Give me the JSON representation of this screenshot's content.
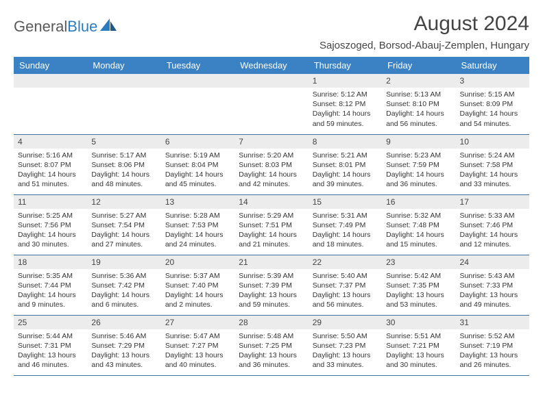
{
  "logo": {
    "word1": "General",
    "word2": "Blue"
  },
  "title": "August 2024",
  "location": "Sajoszoged, Borsod-Abauj-Zemplen, Hungary",
  "colors": {
    "header_bg": "#3b82c4",
    "header_text": "#ffffff",
    "daynum_bg": "#ececec",
    "row_border": "#3b6fa0",
    "logo_gray": "#5a5a5a",
    "logo_blue": "#2b7bbf"
  },
  "dayHeaders": [
    "Sunday",
    "Monday",
    "Tuesday",
    "Wednesday",
    "Thursday",
    "Friday",
    "Saturday"
  ],
  "weeks": [
    [
      {
        "n": "",
        "sr": "",
        "ss": "",
        "dl": ""
      },
      {
        "n": "",
        "sr": "",
        "ss": "",
        "dl": ""
      },
      {
        "n": "",
        "sr": "",
        "ss": "",
        "dl": ""
      },
      {
        "n": "",
        "sr": "",
        "ss": "",
        "dl": ""
      },
      {
        "n": "1",
        "sr": "Sunrise: 5:12 AM",
        "ss": "Sunset: 8:12 PM",
        "dl": "Daylight: 14 hours and 59 minutes."
      },
      {
        "n": "2",
        "sr": "Sunrise: 5:13 AM",
        "ss": "Sunset: 8:10 PM",
        "dl": "Daylight: 14 hours and 56 minutes."
      },
      {
        "n": "3",
        "sr": "Sunrise: 5:15 AM",
        "ss": "Sunset: 8:09 PM",
        "dl": "Daylight: 14 hours and 54 minutes."
      }
    ],
    [
      {
        "n": "4",
        "sr": "Sunrise: 5:16 AM",
        "ss": "Sunset: 8:07 PM",
        "dl": "Daylight: 14 hours and 51 minutes."
      },
      {
        "n": "5",
        "sr": "Sunrise: 5:17 AM",
        "ss": "Sunset: 8:06 PM",
        "dl": "Daylight: 14 hours and 48 minutes."
      },
      {
        "n": "6",
        "sr": "Sunrise: 5:19 AM",
        "ss": "Sunset: 8:04 PM",
        "dl": "Daylight: 14 hours and 45 minutes."
      },
      {
        "n": "7",
        "sr": "Sunrise: 5:20 AM",
        "ss": "Sunset: 8:03 PM",
        "dl": "Daylight: 14 hours and 42 minutes."
      },
      {
        "n": "8",
        "sr": "Sunrise: 5:21 AM",
        "ss": "Sunset: 8:01 PM",
        "dl": "Daylight: 14 hours and 39 minutes."
      },
      {
        "n": "9",
        "sr": "Sunrise: 5:23 AM",
        "ss": "Sunset: 7:59 PM",
        "dl": "Daylight: 14 hours and 36 minutes."
      },
      {
        "n": "10",
        "sr": "Sunrise: 5:24 AM",
        "ss": "Sunset: 7:58 PM",
        "dl": "Daylight: 14 hours and 33 minutes."
      }
    ],
    [
      {
        "n": "11",
        "sr": "Sunrise: 5:25 AM",
        "ss": "Sunset: 7:56 PM",
        "dl": "Daylight: 14 hours and 30 minutes."
      },
      {
        "n": "12",
        "sr": "Sunrise: 5:27 AM",
        "ss": "Sunset: 7:54 PM",
        "dl": "Daylight: 14 hours and 27 minutes."
      },
      {
        "n": "13",
        "sr": "Sunrise: 5:28 AM",
        "ss": "Sunset: 7:53 PM",
        "dl": "Daylight: 14 hours and 24 minutes."
      },
      {
        "n": "14",
        "sr": "Sunrise: 5:29 AM",
        "ss": "Sunset: 7:51 PM",
        "dl": "Daylight: 14 hours and 21 minutes."
      },
      {
        "n": "15",
        "sr": "Sunrise: 5:31 AM",
        "ss": "Sunset: 7:49 PM",
        "dl": "Daylight: 14 hours and 18 minutes."
      },
      {
        "n": "16",
        "sr": "Sunrise: 5:32 AM",
        "ss": "Sunset: 7:48 PM",
        "dl": "Daylight: 14 hours and 15 minutes."
      },
      {
        "n": "17",
        "sr": "Sunrise: 5:33 AM",
        "ss": "Sunset: 7:46 PM",
        "dl": "Daylight: 14 hours and 12 minutes."
      }
    ],
    [
      {
        "n": "18",
        "sr": "Sunrise: 5:35 AM",
        "ss": "Sunset: 7:44 PM",
        "dl": "Daylight: 14 hours and 9 minutes."
      },
      {
        "n": "19",
        "sr": "Sunrise: 5:36 AM",
        "ss": "Sunset: 7:42 PM",
        "dl": "Daylight: 14 hours and 6 minutes."
      },
      {
        "n": "20",
        "sr": "Sunrise: 5:37 AM",
        "ss": "Sunset: 7:40 PM",
        "dl": "Daylight: 14 hours and 2 minutes."
      },
      {
        "n": "21",
        "sr": "Sunrise: 5:39 AM",
        "ss": "Sunset: 7:39 PM",
        "dl": "Daylight: 13 hours and 59 minutes."
      },
      {
        "n": "22",
        "sr": "Sunrise: 5:40 AM",
        "ss": "Sunset: 7:37 PM",
        "dl": "Daylight: 13 hours and 56 minutes."
      },
      {
        "n": "23",
        "sr": "Sunrise: 5:42 AM",
        "ss": "Sunset: 7:35 PM",
        "dl": "Daylight: 13 hours and 53 minutes."
      },
      {
        "n": "24",
        "sr": "Sunrise: 5:43 AM",
        "ss": "Sunset: 7:33 PM",
        "dl": "Daylight: 13 hours and 49 minutes."
      }
    ],
    [
      {
        "n": "25",
        "sr": "Sunrise: 5:44 AM",
        "ss": "Sunset: 7:31 PM",
        "dl": "Daylight: 13 hours and 46 minutes."
      },
      {
        "n": "26",
        "sr": "Sunrise: 5:46 AM",
        "ss": "Sunset: 7:29 PM",
        "dl": "Daylight: 13 hours and 43 minutes."
      },
      {
        "n": "27",
        "sr": "Sunrise: 5:47 AM",
        "ss": "Sunset: 7:27 PM",
        "dl": "Daylight: 13 hours and 40 minutes."
      },
      {
        "n": "28",
        "sr": "Sunrise: 5:48 AM",
        "ss": "Sunset: 7:25 PM",
        "dl": "Daylight: 13 hours and 36 minutes."
      },
      {
        "n": "29",
        "sr": "Sunrise: 5:50 AM",
        "ss": "Sunset: 7:23 PM",
        "dl": "Daylight: 13 hours and 33 minutes."
      },
      {
        "n": "30",
        "sr": "Sunrise: 5:51 AM",
        "ss": "Sunset: 7:21 PM",
        "dl": "Daylight: 13 hours and 30 minutes."
      },
      {
        "n": "31",
        "sr": "Sunrise: 5:52 AM",
        "ss": "Sunset: 7:19 PM",
        "dl": "Daylight: 13 hours and 26 minutes."
      }
    ]
  ]
}
